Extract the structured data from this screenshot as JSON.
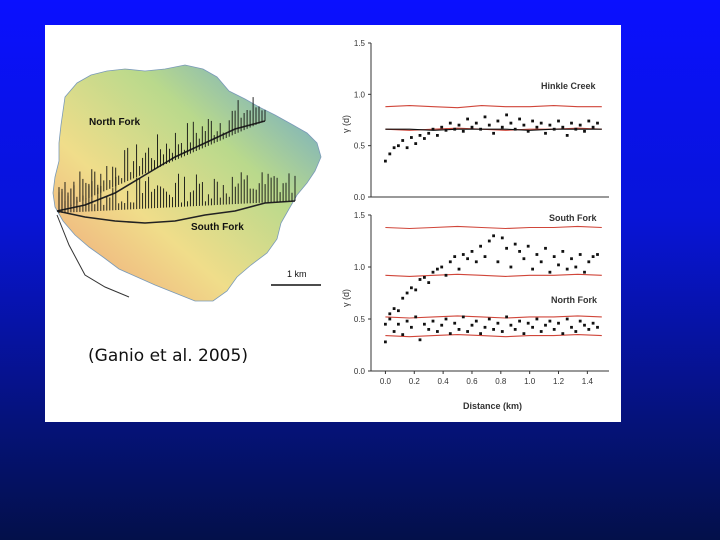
{
  "slide": {
    "citation": "(Ganio et al. 2005)"
  },
  "map": {
    "labels": {
      "north_fork": "North Fork",
      "south_fork": "South Fork",
      "scale_bar": "1 km"
    },
    "colors": {
      "ridge": "#5f9fd6",
      "upper": "#b9d98c",
      "middle": "#f0dd8a",
      "lower": "#f0a07a"
    }
  },
  "chart_data": [
    {
      "type": "scatter",
      "title": "",
      "xlabel": "",
      "ylabel": "γ (d)",
      "xlim": [
        -0.1,
        1.55
      ],
      "ylim": [
        0,
        1.5
      ],
      "yticks": [
        "0.0",
        "0.5",
        "1.0",
        "1.5"
      ],
      "grid": false,
      "annotations": [
        "Hinkle Creek"
      ],
      "series": [
        {
          "values_x": [
            0.0,
            0.03,
            0.06,
            0.09,
            0.12,
            0.15,
            0.18,
            0.21,
            0.24,
            0.27,
            0.3,
            0.33,
            0.36,
            0.39,
            0.42,
            0.45,
            0.48,
            0.51,
            0.54,
            0.57,
            0.6,
            0.63,
            0.66,
            0.69,
            0.72,
            0.75,
            0.78,
            0.81,
            0.84,
            0.87,
            0.9,
            0.93,
            0.96,
            0.99,
            1.02,
            1.05,
            1.08,
            1.11,
            1.14,
            1.17,
            1.2,
            1.23,
            1.26,
            1.29,
            1.32,
            1.35,
            1.38,
            1.41,
            1.44,
            1.47
          ],
          "values_y": [
            0.35,
            0.42,
            0.48,
            0.5,
            0.55,
            0.48,
            0.58,
            0.52,
            0.6,
            0.57,
            0.62,
            0.66,
            0.6,
            0.68,
            0.65,
            0.72,
            0.66,
            0.7,
            0.64,
            0.76,
            0.68,
            0.72,
            0.66,
            0.78,
            0.7,
            0.62,
            0.74,
            0.68,
            0.8,
            0.72,
            0.66,
            0.76,
            0.7,
            0.64,
            0.74,
            0.68,
            0.72,
            0.62,
            0.7,
            0.66,
            0.74,
            0.68,
            0.6,
            0.72,
            0.66,
            0.7,
            0.64,
            0.74,
            0.68,
            0.72
          ]
        }
      ],
      "reference_lines": [
        {
          "y": [
            0.88,
            0.89,
            0.88,
            0.87,
            0.89,
            0.88,
            0.88,
            0.89,
            0.88,
            0.88
          ],
          "color": "#d0463a"
        },
        {
          "y": [
            0.66,
            0.65,
            0.66,
            0.67,
            0.66,
            0.65,
            0.66,
            0.66,
            0.67,
            0.66
          ],
          "color": "#d0463a"
        },
        {
          "y": [
            0.66,
            0.66,
            0.65,
            0.66,
            0.66,
            0.66,
            0.65,
            0.66,
            0.66,
            0.66
          ],
          "color": "#111111"
        }
      ]
    },
    {
      "type": "scatter",
      "title": "",
      "xlabel": "Distance (km)",
      "ylabel": "γ (d)",
      "xlim": [
        -0.1,
        1.55
      ],
      "ylim": [
        0,
        1.5
      ],
      "xticks": [
        "0.0",
        "0.2",
        "0.4",
        "0.6",
        "0.8",
        "1.0",
        "1.2",
        "1.4"
      ],
      "yticks": [
        "0.0",
        "0.5",
        "1.0",
        "1.5"
      ],
      "grid": false,
      "annotations": [
        "South Fork",
        "North Fork"
      ],
      "series": [
        {
          "values_x": [
            0.0,
            0.03,
            0.06,
            0.09,
            0.12,
            0.15,
            0.18,
            0.21,
            0.24,
            0.27,
            0.3,
            0.33,
            0.36,
            0.39,
            0.42,
            0.45,
            0.48,
            0.51,
            0.54,
            0.57,
            0.6,
            0.63,
            0.66,
            0.69,
            0.72,
            0.75,
            0.78,
            0.81,
            0.84,
            0.87,
            0.9,
            0.93,
            0.96,
            0.99,
            1.02,
            1.05,
            1.08,
            1.11,
            1.14,
            1.17,
            1.2,
            1.23,
            1.26,
            1.29,
            1.32,
            1.35,
            1.38,
            1.41,
            1.44,
            1.47
          ],
          "values_y": [
            0.45,
            0.55,
            0.6,
            0.58,
            0.7,
            0.75,
            0.8,
            0.78,
            0.88,
            0.9,
            0.85,
            0.95,
            0.98,
            1.0,
            0.92,
            1.05,
            1.1,
            0.98,
            1.12,
            1.08,
            1.15,
            1.05,
            1.2,
            1.1,
            1.25,
            1.3,
            1.05,
            1.28,
            1.18,
            1.0,
            1.22,
            1.15,
            1.08,
            1.2,
            0.98,
            1.12,
            1.05,
            1.18,
            0.95,
            1.1,
            1.02,
            1.15,
            0.98,
            1.08,
            1.0,
            1.12,
            0.95,
            1.05,
            1.1,
            1.12
          ]
        },
        {
          "values_x": [
            0.0,
            0.03,
            0.06,
            0.09,
            0.12,
            0.15,
            0.18,
            0.21,
            0.24,
            0.27,
            0.3,
            0.33,
            0.36,
            0.39,
            0.42,
            0.45,
            0.48,
            0.51,
            0.54,
            0.57,
            0.6,
            0.63,
            0.66,
            0.69,
            0.72,
            0.75,
            0.78,
            0.81,
            0.84,
            0.87,
            0.9,
            0.93,
            0.96,
            0.99,
            1.02,
            1.05,
            1.08,
            1.11,
            1.14,
            1.17,
            1.2,
            1.23,
            1.26,
            1.29,
            1.32,
            1.35,
            1.38,
            1.41,
            1.44,
            1.47
          ],
          "values_y": [
            0.28,
            0.5,
            0.38,
            0.45,
            0.35,
            0.48,
            0.42,
            0.52,
            0.3,
            0.45,
            0.4,
            0.48,
            0.38,
            0.44,
            0.5,
            0.36,
            0.46,
            0.4,
            0.52,
            0.38,
            0.44,
            0.48,
            0.36,
            0.42,
            0.5,
            0.4,
            0.46,
            0.38,
            0.52,
            0.44,
            0.4,
            0.48,
            0.36,
            0.46,
            0.42,
            0.5,
            0.38,
            0.44,
            0.48,
            0.4,
            0.46,
            0.36,
            0.5,
            0.42,
            0.38,
            0.48,
            0.44,
            0.4,
            0.46,
            0.42
          ]
        }
      ],
      "reference_lines": [
        {
          "y": [
            1.38,
            1.37,
            1.38,
            1.39,
            1.38,
            1.37,
            1.38,
            1.38,
            1.39,
            1.38
          ],
          "color": "#d0463a"
        },
        {
          "y": [
            0.92,
            0.91,
            0.92,
            0.93,
            0.92,
            0.91,
            0.92,
            0.92,
            0.93,
            0.92
          ],
          "color": "#d0463a"
        },
        {
          "y": [
            0.52,
            0.51,
            0.52,
            0.53,
            0.52,
            0.51,
            0.52,
            0.52,
            0.53,
            0.52
          ],
          "color": "#d0463a"
        },
        {
          "y": [
            0.34,
            0.33,
            0.34,
            0.35,
            0.34,
            0.33,
            0.34,
            0.34,
            0.35,
            0.34
          ],
          "color": "#d0463a"
        }
      ]
    }
  ]
}
